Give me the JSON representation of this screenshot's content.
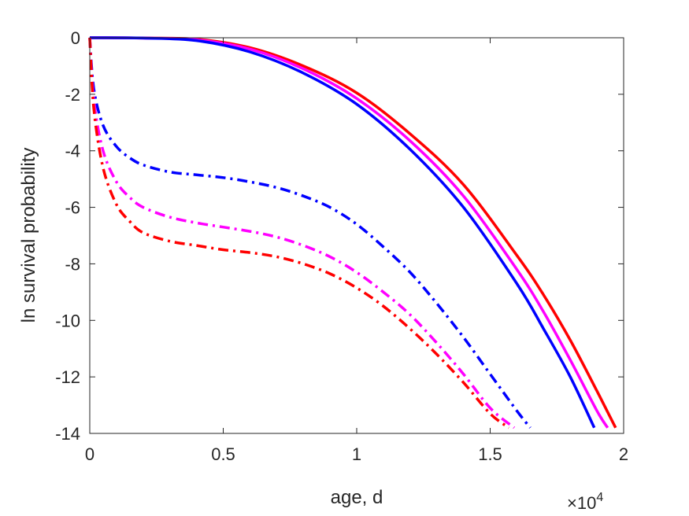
{
  "chart_data": {
    "type": "line",
    "xlabel": "age, d",
    "ylabel": "ln survival probability",
    "x_exponent": {
      "base": "×10",
      "power": "4"
    },
    "xlim": [
      0,
      20000
    ],
    "ylim": [
      -14,
      0
    ],
    "x_ticks": [
      {
        "value": 0,
        "label": "0"
      },
      {
        "value": 5000,
        "label": "0.5"
      },
      {
        "value": 10000,
        "label": "1"
      },
      {
        "value": 15000,
        "label": "1.5"
      },
      {
        "value": 20000,
        "label": "2"
      }
    ],
    "y_ticks": [
      {
        "value": 0,
        "label": "0"
      },
      {
        "value": -2,
        "label": "-2"
      },
      {
        "value": -4,
        "label": "-4"
      },
      {
        "value": -6,
        "label": "-6"
      },
      {
        "value": -8,
        "label": "-8"
      },
      {
        "value": -10,
        "label": "-10"
      },
      {
        "value": -12,
        "label": "-12"
      },
      {
        "value": -14,
        "label": "-14"
      }
    ],
    "grid": false,
    "series": [
      {
        "color": "#ff0000",
        "style": "solid",
        "x": [
          0,
          2000,
          4000,
          6000,
          8000,
          10000,
          12000,
          14000,
          16000,
          17000,
          18000,
          19000,
          19700
        ],
        "y": [
          0,
          -0.01,
          -0.05,
          -0.35,
          -1.0,
          -1.95,
          -3.4,
          -5.2,
          -7.7,
          -9.1,
          -10.7,
          -12.5,
          -13.8
        ]
      },
      {
        "color": "#ff00ff",
        "style": "solid",
        "x": [
          0,
          2000,
          4000,
          6000,
          8000,
          10000,
          12000,
          14000,
          16000,
          17000,
          18000,
          19000,
          19400
        ],
        "y": [
          0,
          -0.01,
          -0.07,
          -0.4,
          -1.1,
          -2.15,
          -3.65,
          -5.6,
          -8.2,
          -9.7,
          -11.4,
          -13.2,
          -13.8
        ]
      },
      {
        "color": "#0000ff",
        "style": "solid",
        "x": [
          0,
          2000,
          4000,
          6000,
          8000,
          10000,
          12000,
          14000,
          16000,
          17000,
          18000,
          18900
        ],
        "y": [
          0,
          -0.01,
          -0.1,
          -0.5,
          -1.25,
          -2.35,
          -3.95,
          -6.0,
          -8.7,
          -10.3,
          -12.0,
          -13.8
        ]
      },
      {
        "color": "#0000ff",
        "style": "dashdot",
        "x": [
          0,
          150,
          500,
          1000,
          1500,
          2000,
          3000,
          4000,
          5000,
          6000,
          7000,
          8000,
          9000,
          10000,
          11000,
          12000,
          13000,
          14000,
          15000,
          16000,
          16500
        ],
        "y": [
          0,
          -1.8,
          -3.1,
          -3.85,
          -4.25,
          -4.5,
          -4.75,
          -4.85,
          -4.95,
          -5.1,
          -5.3,
          -5.6,
          -6.0,
          -6.6,
          -7.4,
          -8.3,
          -9.4,
          -10.6,
          -11.9,
          -13.2,
          -13.8
        ]
      },
      {
        "color": "#ff00ff",
        "style": "dashdot",
        "x": [
          0,
          150,
          500,
          1000,
          1500,
          2000,
          3000,
          4000,
          5000,
          6000,
          7000,
          8000,
          9000,
          10000,
          11000,
          12000,
          13000,
          14000,
          15000,
          15900
        ],
        "y": [
          0,
          -2.2,
          -4.0,
          -5.1,
          -5.65,
          -6.0,
          -6.35,
          -6.55,
          -6.7,
          -6.85,
          -7.05,
          -7.35,
          -7.75,
          -8.3,
          -9.0,
          -9.8,
          -10.8,
          -11.9,
          -13.1,
          -13.8
        ]
      },
      {
        "color": "#ff0000",
        "style": "dashdot",
        "x": [
          0,
          150,
          500,
          1000,
          1500,
          2000,
          3000,
          4000,
          5000,
          6000,
          7000,
          8000,
          9000,
          10000,
          11000,
          12000,
          13000,
          14000,
          15000,
          15700
        ],
        "y": [
          0,
          -2.5,
          -4.6,
          -5.9,
          -6.5,
          -6.9,
          -7.2,
          -7.35,
          -7.5,
          -7.6,
          -7.75,
          -8.0,
          -8.35,
          -8.85,
          -9.5,
          -10.3,
          -11.2,
          -12.2,
          -13.3,
          -13.8
        ]
      }
    ]
  }
}
